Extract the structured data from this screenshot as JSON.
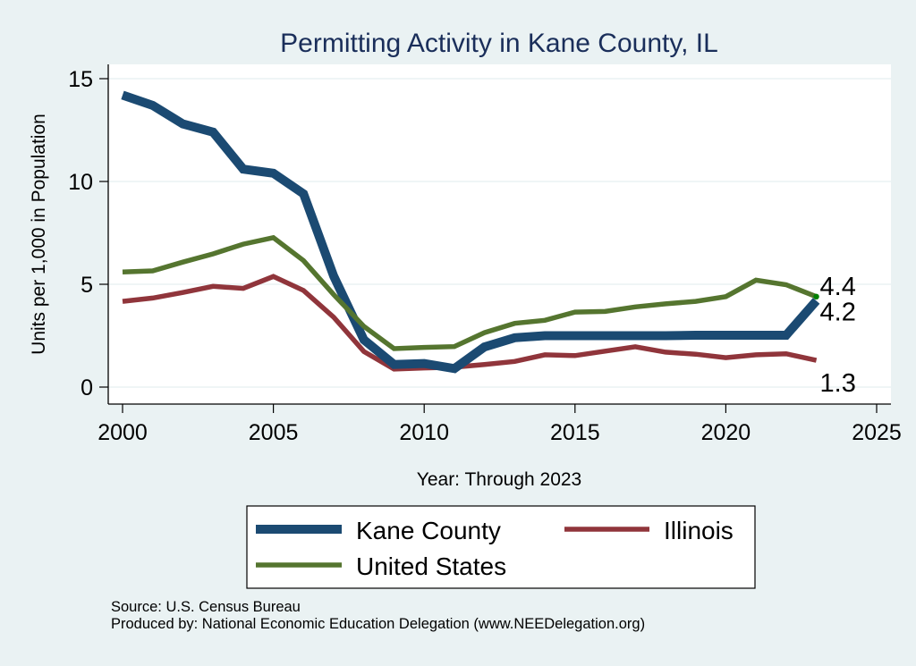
{
  "chart_data": {
    "type": "line",
    "title": "Permitting Activity in Kane County, IL",
    "xlabel": "Year: Through 2023",
    "ylabel": "Units per 1,000 in Population",
    "xlim": [
      2000,
      2025
    ],
    "ylim": [
      0,
      15
    ],
    "xticks": [
      "2000",
      "2005",
      "2010",
      "2015",
      "2020",
      "2025"
    ],
    "yticks": [
      "0",
      "5",
      "10",
      "15"
    ],
    "grid": true,
    "legend_position": "bottom",
    "x": [
      2000,
      2001,
      2002,
      2003,
      2004,
      2005,
      2006,
      2007,
      2008,
      2009,
      2010,
      2011,
      2012,
      2013,
      2014,
      2015,
      2016,
      2017,
      2018,
      2019,
      2020,
      2021,
      2022,
      2023
    ],
    "series": [
      {
        "name": "Kane County",
        "color": "#1B4A72",
        "values": [
          14.2,
          13.7,
          12.8,
          12.4,
          10.6,
          10.4,
          9.4,
          5.4,
          2.3,
          1.1,
          1.15,
          0.9,
          1.95,
          2.4,
          2.5,
          2.5,
          2.5,
          2.5,
          2.5,
          2.52,
          2.52,
          2.52,
          2.52,
          4.2
        ],
        "end_label": "4.2"
      },
      {
        "name": "Illinois",
        "color": "#90353B",
        "values": [
          4.17,
          4.33,
          4.6,
          4.9,
          4.8,
          5.38,
          4.7,
          3.4,
          1.73,
          0.88,
          0.93,
          0.97,
          1.1,
          1.25,
          1.57,
          1.53,
          1.75,
          1.96,
          1.7,
          1.6,
          1.43,
          1.57,
          1.62,
          1.3
        ],
        "end_label": "1.3"
      },
      {
        "name": "United States",
        "color": "#55752F",
        "values": [
          5.6,
          5.65,
          6.08,
          6.48,
          6.95,
          7.27,
          6.15,
          4.5,
          2.95,
          1.87,
          1.93,
          1.97,
          2.65,
          3.1,
          3.25,
          3.65,
          3.68,
          3.9,
          4.05,
          4.17,
          4.4,
          5.2,
          4.98,
          4.4
        ],
        "end_label": "4.4"
      }
    ],
    "endpoint_marker_color": "#008000",
    "legend": [
      {
        "name": "Kane County",
        "series": 0
      },
      {
        "name": "Illinois",
        "series": 1
      },
      {
        "name": "United States",
        "series": 2
      }
    ]
  },
  "footer": {
    "source": "Source: U.S. Census Bureau",
    "produced_by": "Produced by: National Economic Education Delegation (www.NEEDelegation.org)"
  }
}
